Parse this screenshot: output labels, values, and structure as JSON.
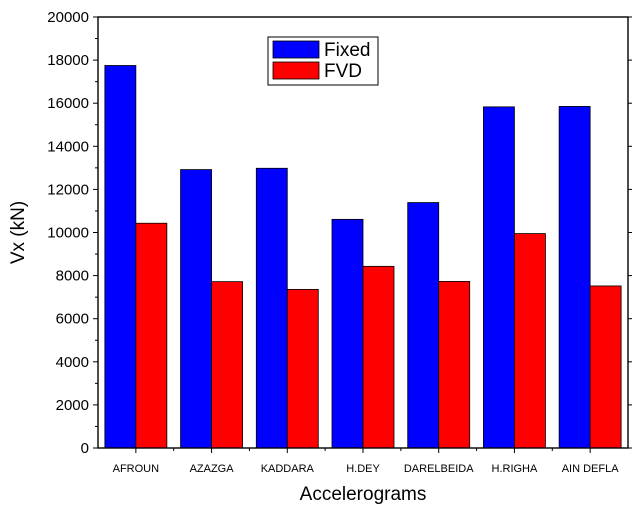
{
  "chart_data": {
    "type": "bar",
    "categories": [
      "AFROUN",
      "AZAZGA",
      "KADDARA",
      "H.DEY",
      "DARELBEIDA",
      "H.RIGHA",
      "AIN DEFLA"
    ],
    "series": [
      {
        "name": "Fixed",
        "color": "#0000ff",
        "values": [
          17750,
          12920,
          12980,
          10610,
          11390,
          15830,
          15850
        ]
      },
      {
        "name": "FVD",
        "color": "#ff0000",
        "values": [
          10430,
          7720,
          7360,
          8430,
          7730,
          9950,
          7520
        ]
      }
    ],
    "title": "",
    "xlabel": "Accelerograms",
    "ylabel": "Vx (kN)",
    "ylim": [
      0,
      20000
    ],
    "yticks": [
      0,
      2000,
      4000,
      6000,
      8000,
      10000,
      12000,
      14000,
      16000,
      18000,
      20000
    ],
    "grid": false,
    "legend_position": "top-center"
  }
}
